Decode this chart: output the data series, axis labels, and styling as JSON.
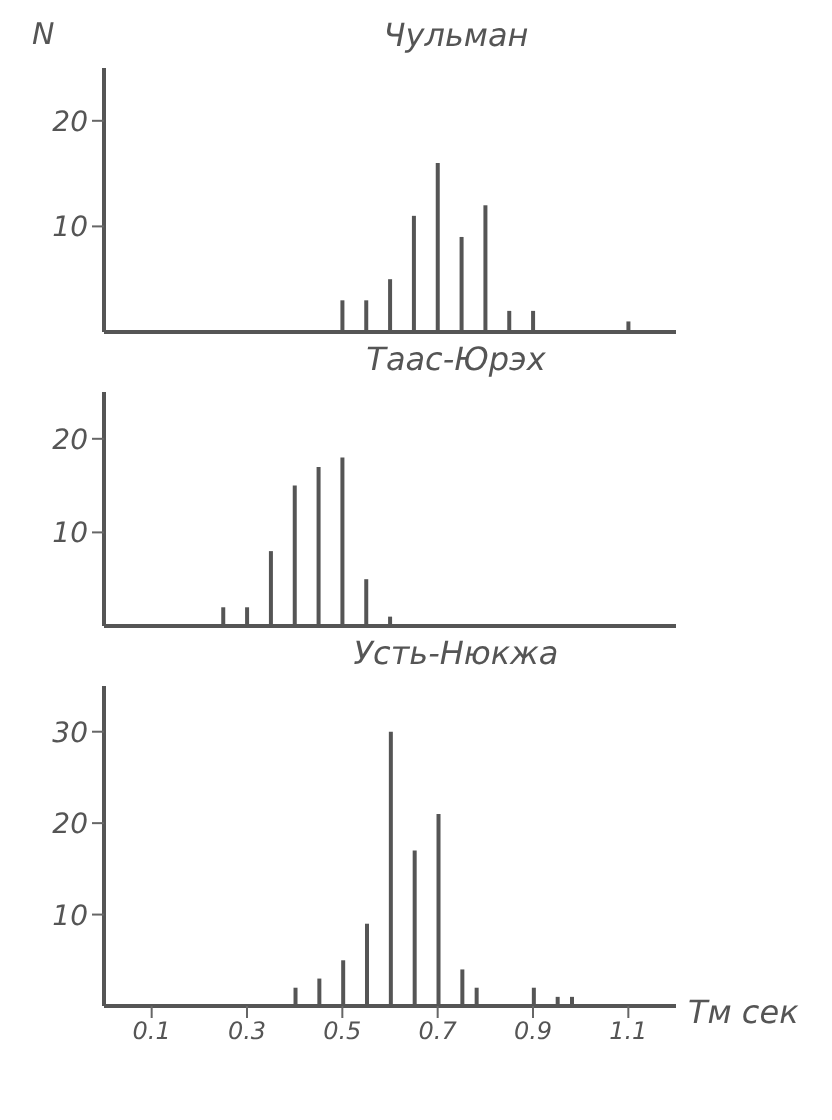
{
  "chart_data": [
    {
      "type": "bar",
      "title": "Чульман",
      "ylabel": "N",
      "color": "#555555",
      "x": [
        0.5,
        0.55,
        0.6,
        0.65,
        0.7,
        0.75,
        0.8,
        0.85,
        0.9,
        1.1
      ],
      "values": [
        3,
        3,
        5,
        11,
        16,
        9,
        12,
        2,
        2,
        1
      ],
      "xlim": [
        0,
        1.2
      ],
      "xticks": [
        0.1,
        0.3,
        0.5,
        0.7,
        0.9,
        1.1
      ],
      "ylim": [
        0,
        25
      ],
      "yticks": [
        10,
        20
      ],
      "tick_labels": "y"
    },
    {
      "type": "bar",
      "title": "Таас-Юрэх",
      "color": "#555555",
      "x": [
        0.25,
        0.3,
        0.35,
        0.4,
        0.45,
        0.5,
        0.55,
        0.6
      ],
      "values": [
        2,
        2,
        8,
        15,
        17,
        18,
        5,
        1
      ],
      "xlim": [
        0,
        1.2
      ],
      "xticks": [
        0.1,
        0.3,
        0.5,
        0.7,
        0.9,
        1.1
      ],
      "ylim": [
        0,
        25
      ],
      "yticks": [
        10,
        20
      ],
      "tick_labels": "y"
    },
    {
      "type": "bar",
      "title": "Усть-Нюкжа",
      "xlabel": "Тм сек",
      "color": "#555555",
      "x": [
        0.4,
        0.45,
        0.5,
        0.55,
        0.6,
        0.65,
        0.7,
        0.75,
        0.78,
        0.9,
        0.95,
        0.98
      ],
      "values": [
        2,
        3,
        5,
        9,
        30,
        17,
        21,
        4,
        2,
        2,
        1,
        1
      ],
      "xlim": [
        0,
        1.2
      ],
      "xticks": [
        0.1,
        0.3,
        0.5,
        0.7,
        0.9,
        1.1
      ],
      "ylim": [
        0,
        35
      ],
      "yticks": [
        10,
        20,
        30
      ]
    }
  ]
}
